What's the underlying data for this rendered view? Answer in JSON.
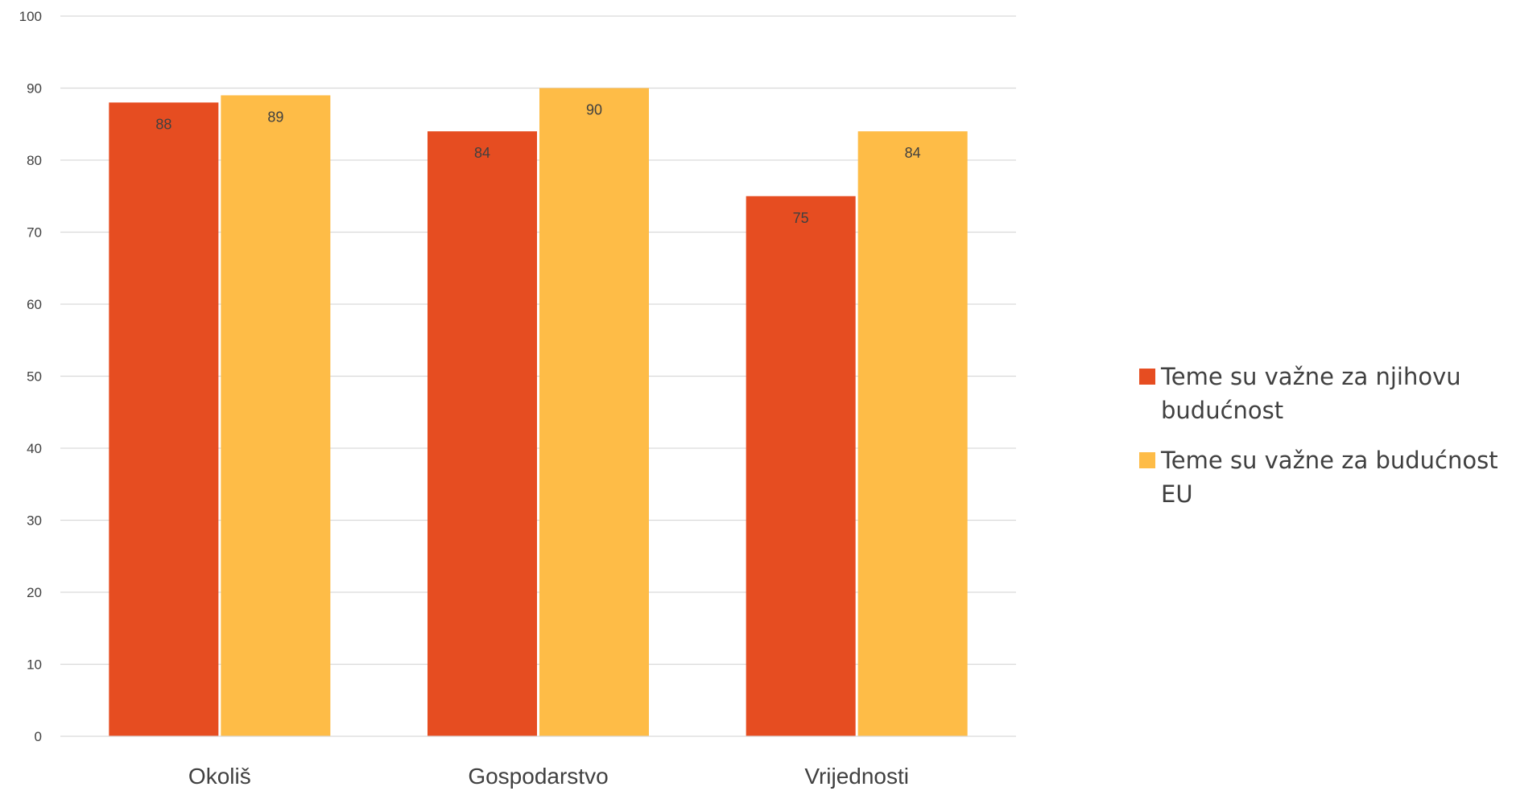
{
  "chart_data": {
    "type": "bar",
    "categories": [
      "Okoliš",
      "Gospodarstvo",
      "Vrijednosti"
    ],
    "series": [
      {
        "name": "Teme su važne za njihovu budućnost",
        "values": [
          88,
          84,
          75
        ],
        "color": "#E64D21"
      },
      {
        "name": "Teme su važne za budućnost EU",
        "values": [
          89,
          90,
          84
        ],
        "color": "#FEBC47"
      }
    ],
    "ylim": [
      0,
      100
    ],
    "yticks": [
      0,
      10,
      20,
      30,
      40,
      50,
      60,
      70,
      80,
      90,
      100
    ],
    "data_labels": true,
    "grid": true,
    "legend_position": "right"
  }
}
